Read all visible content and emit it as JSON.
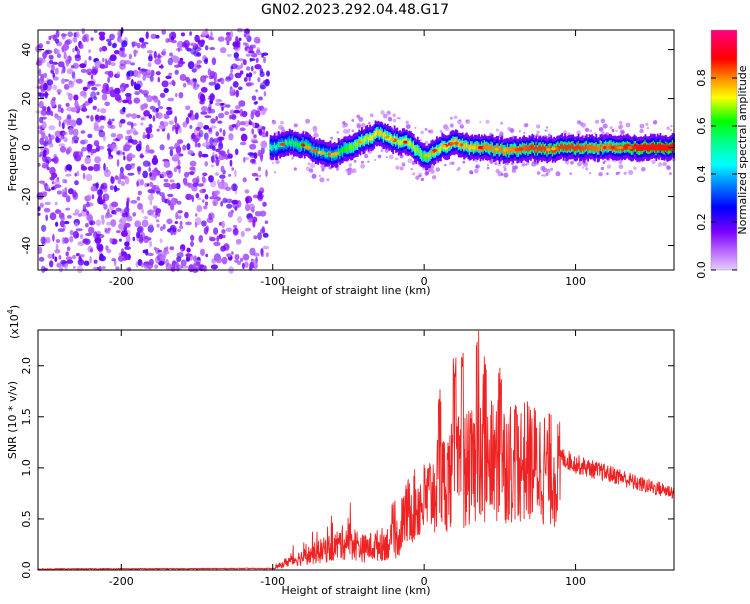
{
  "title": "GN02.2023.292.04.48.G17",
  "chart_data": [
    {
      "type": "heatmap",
      "xlabel": "Height of straight line (km)",
      "ylabel": "Frequency (Hz)",
      "xlim": [
        -255,
        165
      ],
      "ylim": [
        -50,
        48
      ],
      "xticks": [
        -200,
        -100,
        0,
        100
      ],
      "yticks": [
        -40,
        -20,
        0,
        20,
        40
      ],
      "colorbar": {
        "label": "Normalized spectral amplitude",
        "range": [
          0,
          1
        ],
        "ticks": [
          0.0,
          0.2,
          0.4,
          0.6,
          0.8
        ],
        "colormap": [
          "#e6ccff",
          "#7a00ff",
          "#0000ff",
          "#00ffff",
          "#00ff00",
          "#ffff00",
          "#ff0000",
          "#ff0080"
        ]
      },
      "ridge": {
        "x": [
          -100,
          -90,
          -80,
          -70,
          -60,
          -50,
          -40,
          -30,
          -20,
          -10,
          0,
          10,
          20,
          30,
          40,
          50,
          60,
          70,
          80,
          90,
          100,
          120,
          140,
          165
        ],
        "y": [
          0,
          2,
          1,
          -2,
          -3,
          0,
          3,
          6,
          3,
          2,
          -4,
          0,
          2,
          0,
          0,
          -1,
          -1,
          0,
          -1,
          0,
          0,
          0,
          0,
          0
        ],
        "amp": [
          0.5,
          0.55,
          0.6,
          0.5,
          0.55,
          0.65,
          0.7,
          0.75,
          0.7,
          0.7,
          0.65,
          0.7,
          0.75,
          0.75,
          0.8,
          0.8,
          0.8,
          0.85,
          0.85,
          0.85,
          0.85,
          0.8,
          0.9,
          0.95
        ]
      },
      "noise_region_x": [
        -255,
        -103
      ]
    },
    {
      "type": "line",
      "xlabel": "Height of straight line (km)",
      "ylabel": "SNR (10 * v/v)",
      "yscale_label": "(x10",
      "yscale_exp": "4",
      "xlim": [
        -255,
        165
      ],
      "ylim": [
        0,
        2.35
      ],
      "xticks": [
        -200,
        -100,
        0,
        100
      ],
      "yticks": [
        0.0,
        0.5,
        1.0,
        1.5,
        2.0
      ],
      "color": "#ee2222",
      "envelope": {
        "x": [
          -255,
          -100,
          -90,
          -80,
          -60,
          -50,
          -40,
          -30,
          -20,
          -15,
          -10,
          0,
          10,
          20,
          30,
          40,
          50,
          60,
          70,
          80,
          90,
          100,
          110,
          120,
          130,
          140,
          150,
          165
        ],
        "y": [
          0.005,
          0.01,
          0.12,
          0.18,
          0.32,
          0.42,
          0.3,
          0.35,
          0.4,
          0.55,
          0.72,
          0.82,
          1.0,
          1.15,
          1.2,
          1.25,
          1.3,
          1.3,
          1.28,
          1.22,
          1.12,
          1.05,
          1.0,
          0.96,
          0.92,
          0.86,
          0.82,
          0.77
        ]
      },
      "peaks": [
        {
          "x": 10,
          "y": 1.8
        },
        {
          "x": 20,
          "y": 2.1
        },
        {
          "x": 25,
          "y": 2.2
        },
        {
          "x": 35,
          "y": 2.35
        },
        {
          "x": 40,
          "y": 2.1
        },
        {
          "x": 50,
          "y": 2.0
        },
        {
          "x": 60,
          "y": 1.6
        },
        {
          "x": -50,
          "y": 0.65
        },
        {
          "x": -30,
          "y": 0.7
        }
      ]
    }
  ]
}
